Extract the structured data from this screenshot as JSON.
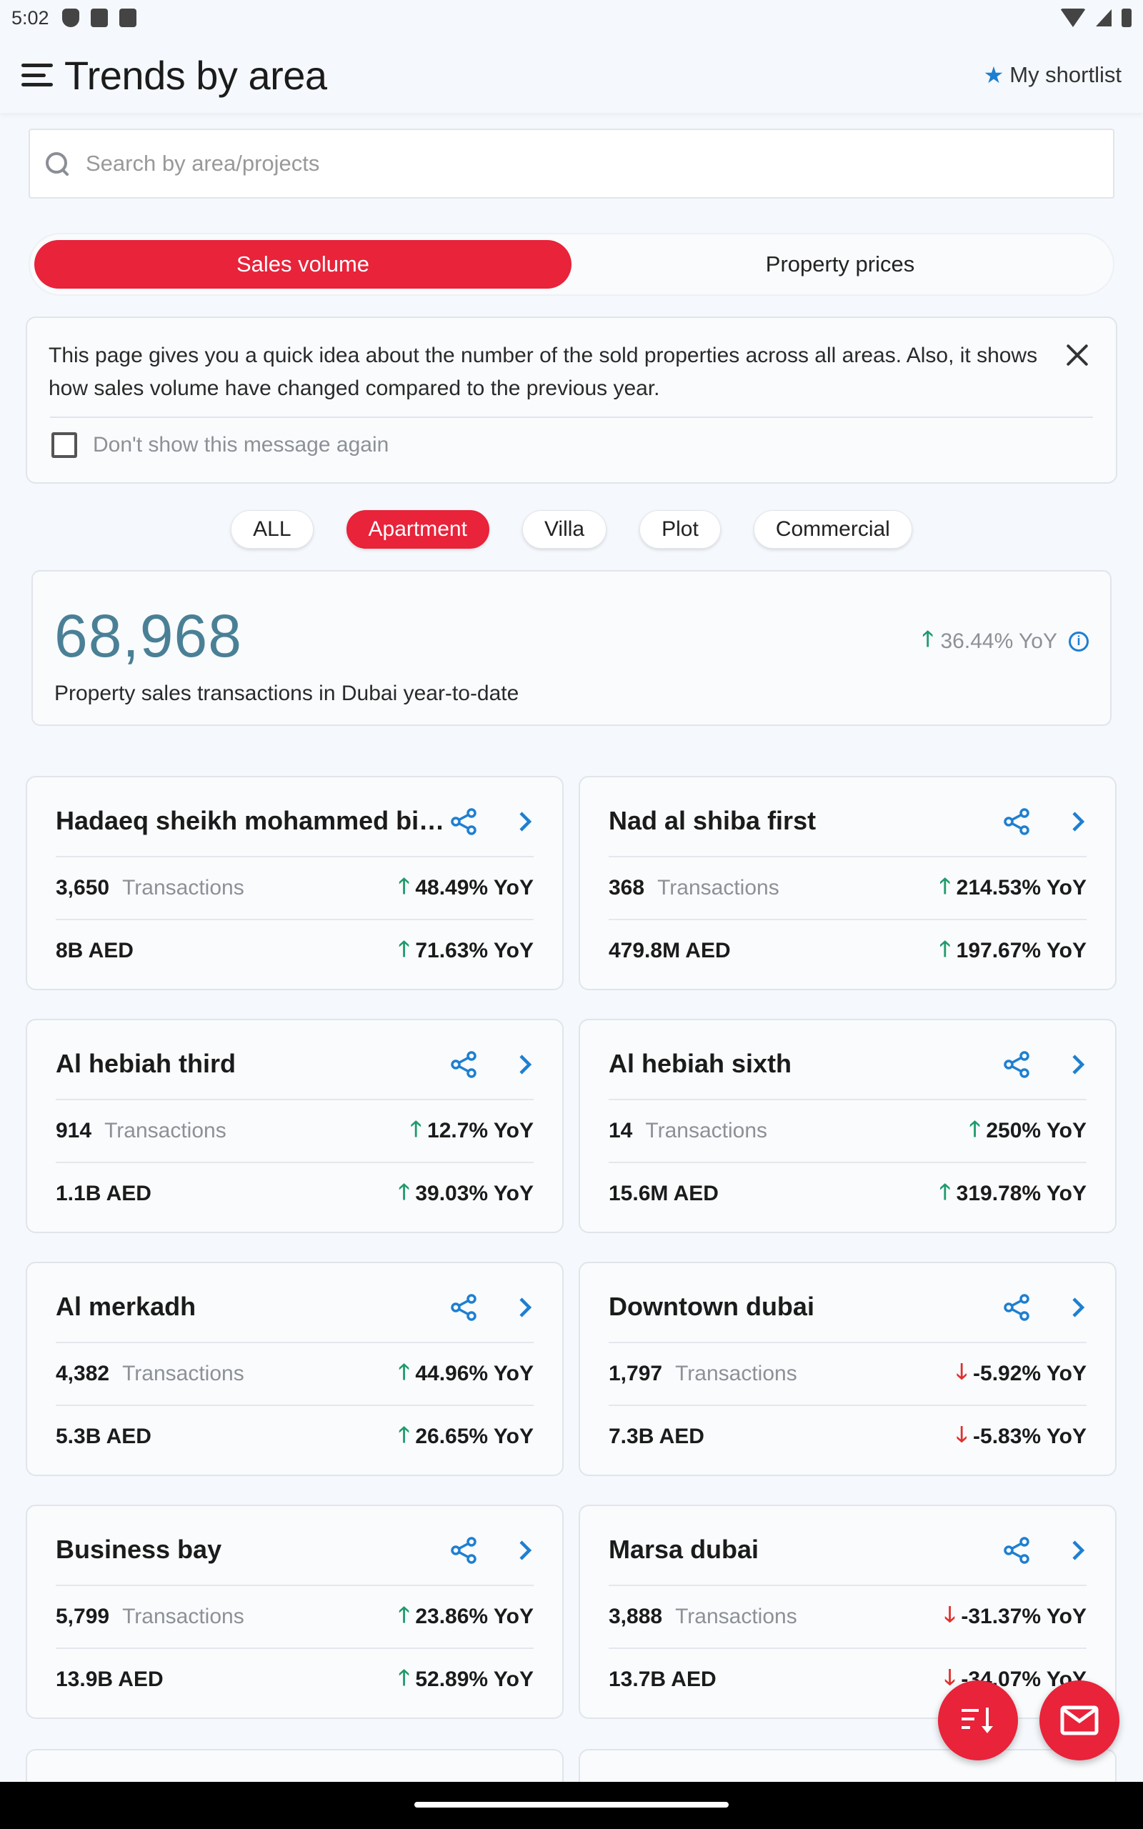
{
  "status_bar": {
    "time": "5:02"
  },
  "header": {
    "title": "Trends by area",
    "shortlist_label": "My shortlist"
  },
  "search": {
    "placeholder": "Search by area/projects"
  },
  "segments": {
    "sales_volume": "Sales volume",
    "property_prices": "Property prices",
    "active": "sales_volume"
  },
  "info": {
    "text": "This page gives you a quick idea about the number of the sold properties across all areas. Also, it shows how sales volume have changed compared to the previous year.",
    "dont_show": "Don't show this message again"
  },
  "filters": {
    "all": "ALL",
    "apartment": "Apartment",
    "villa": "Villa",
    "plot": "Plot",
    "commercial": "Commercial",
    "active": "apartment"
  },
  "summary": {
    "number": "68,968",
    "yoy": "36.44% YoY",
    "caption": "Property sales transactions in Dubai year-to-date"
  },
  "transactions_label": "Transactions",
  "areas": [
    {
      "name": "Hadaeq sheikh mohammed bin...",
      "transactions": "3,650",
      "transactions_yoy": "48.49% YoY",
      "transactions_dir": "up",
      "value": "8B AED",
      "value_yoy": "71.63% YoY",
      "value_dir": "up"
    },
    {
      "name": "Nad al shiba first",
      "transactions": "368",
      "transactions_yoy": "214.53% YoY",
      "transactions_dir": "up",
      "value": "479.8M AED",
      "value_yoy": "197.67% YoY",
      "value_dir": "up"
    },
    {
      "name": "Al hebiah third",
      "transactions": "914",
      "transactions_yoy": "12.7% YoY",
      "transactions_dir": "up",
      "value": "1.1B AED",
      "value_yoy": "39.03% YoY",
      "value_dir": "up"
    },
    {
      "name": "Al hebiah sixth",
      "transactions": "14",
      "transactions_yoy": "250% YoY",
      "transactions_dir": "up",
      "value": "15.6M AED",
      "value_yoy": "319.78% YoY",
      "value_dir": "up"
    },
    {
      "name": "Al merkadh",
      "transactions": "4,382",
      "transactions_yoy": "44.96% YoY",
      "transactions_dir": "up",
      "value": "5.3B AED",
      "value_yoy": "26.65% YoY",
      "value_dir": "up"
    },
    {
      "name": "Downtown dubai",
      "transactions": "1,797",
      "transactions_yoy": "-5.92% YoY",
      "transactions_dir": "down",
      "value": "7.3B AED",
      "value_yoy": "-5.83% YoY",
      "value_dir": "down"
    },
    {
      "name": "Business bay",
      "transactions": "5,799",
      "transactions_yoy": "23.86% YoY",
      "transactions_dir": "up",
      "value": "13.9B AED",
      "value_yoy": "52.89% YoY",
      "value_dir": "up"
    },
    {
      "name": "Marsa dubai",
      "transactions": "3,888",
      "transactions_yoy": "-31.37% YoY",
      "transactions_dir": "down",
      "value": "13.7B AED",
      "value_yoy": "-34.07% YoY",
      "value_dir": "down"
    }
  ],
  "icons": {
    "up": "arrow-up-icon",
    "down": "arrow-down-icon"
  },
  "colors": {
    "accent": "#e8233a",
    "up": "#1f9a6b",
    "down": "#e0302d",
    "link": "#1e7fd0"
  }
}
